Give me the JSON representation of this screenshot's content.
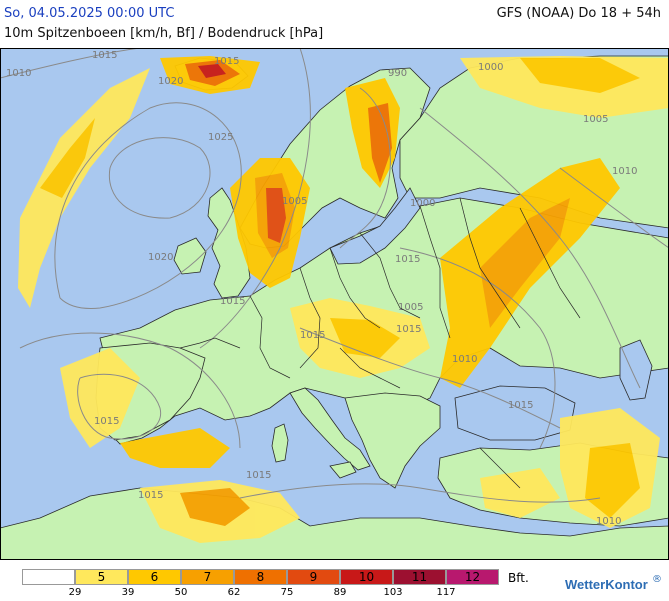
{
  "header": {
    "date": "So, 04.05.2025 00:00 UTC",
    "model": "GFS (NOAA) Do 18 + 54h",
    "title": "10m Spitzenboeen [km/h, Bf] / Bodendruck [hPa]"
  },
  "colors": {
    "sea": "#a9c8ef",
    "land": "#c6f2b2",
    "bft5": "#ffe85c",
    "bft6": "#ffc800",
    "bft7": "#f7a000",
    "bft8": "#ef7000",
    "bft9": "#e24a10",
    "bft10": "#c81818",
    "bft11": "#9c1030",
    "bft12": "#b8186e",
    "isobar": "#8a8a8a",
    "border": "#2a2a2a",
    "brand": "#2d6db4"
  },
  "isobar_labels": [
    "1010",
    "1015",
    "1020",
    "1025",
    "1015",
    "1020",
    "1015",
    "1015",
    "1015",
    "1015",
    "1015",
    "1005",
    "1000",
    "990",
    "1000",
    "1005",
    "1010",
    "1005",
    "1010",
    "1015",
    "1010",
    "1015",
    "1015"
  ],
  "legend": {
    "classes": [
      {
        "label": "",
        "color": "#ffffff"
      },
      {
        "label": "5",
        "color": "#ffe85c"
      },
      {
        "label": "6",
        "color": "#ffc800"
      },
      {
        "label": "7",
        "color": "#f7a000"
      },
      {
        "label": "8",
        "color": "#ef7000"
      },
      {
        "label": "9",
        "color": "#e24a10"
      },
      {
        "label": "10",
        "color": "#c81818"
      },
      {
        "label": "11",
        "color": "#9c1030"
      },
      {
        "label": "12",
        "color": "#b8186e"
      }
    ],
    "ticks": [
      "29",
      "39",
      "50",
      "62",
      "75",
      "89",
      "103",
      "117"
    ],
    "unit": "Bft."
  },
  "brand": "WetterKontor",
  "brand_mark": "®"
}
